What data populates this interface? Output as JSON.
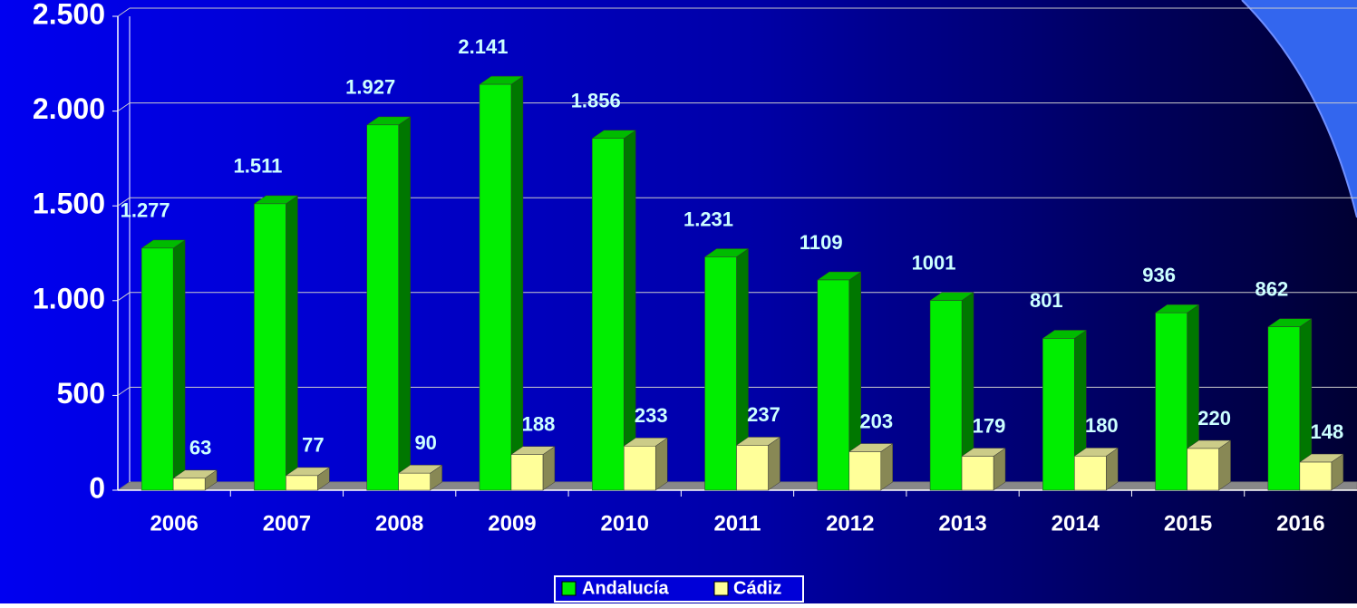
{
  "chart_data": {
    "type": "bar3d",
    "categories": [
      "2006",
      "2007",
      "2008",
      "2009",
      "2010",
      "2011",
      "2012",
      "2013",
      "2014",
      "2015",
      "2016"
    ],
    "series": [
      {
        "name": "Andalucía",
        "color": "#00ee00",
        "values": [
          1277,
          1511,
          1927,
          2141,
          1856,
          1231,
          1109,
          1001,
          801,
          936,
          862
        ],
        "value_labels": [
          "1.277",
          "1.511",
          "1.927",
          "2.141",
          "1.856",
          "1.231",
          "1109",
          "1001",
          "801",
          "936",
          "862"
        ]
      },
      {
        "name": "Cádiz",
        "color": "#ffff99",
        "values": [
          63,
          77,
          90,
          188,
          233,
          237,
          203,
          179,
          180,
          220,
          148
        ]
      }
    ],
    "ylim": [
      0,
      2500
    ],
    "yticks": [
      0,
      500,
      {
        "value": 1000,
        "label": "1.000"
      },
      {
        "value": 1500,
        "label": "1.500"
      },
      {
        "value": 2000,
        "label": "2.000"
      },
      {
        "value": 2500,
        "label": "2.500"
      }
    ],
    "grid": true,
    "legend": "bottom"
  }
}
